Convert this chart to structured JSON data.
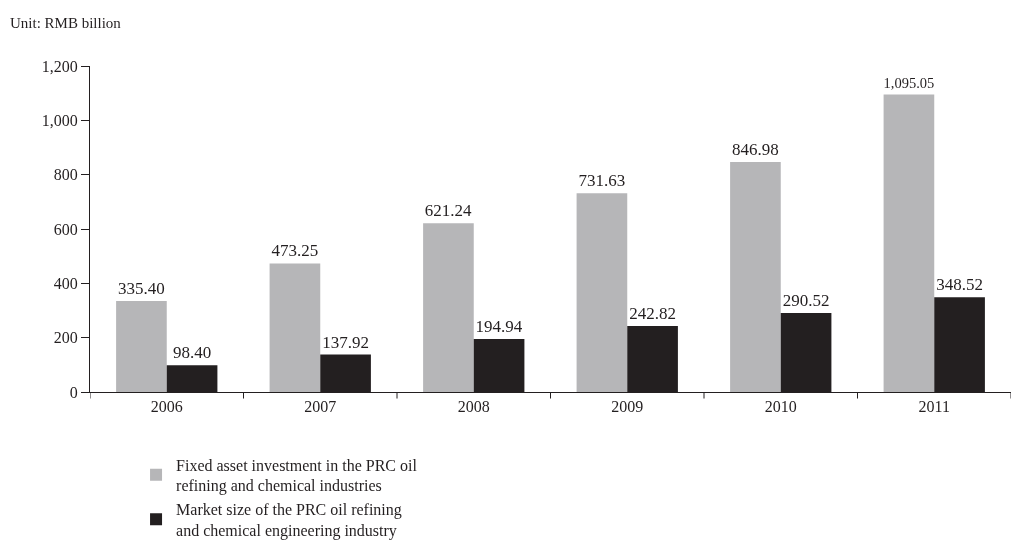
{
  "chart_data": {
    "type": "bar",
    "ylabel": "Unit: RMB billion",
    "categories": [
      "2006",
      "2007",
      "2008",
      "2009",
      "2010",
      "2011"
    ],
    "series": [
      {
        "name": "Fixed asset investment in the PRC oil refining and chemical industries",
        "color": "#b6b6b8",
        "values": [
          335.4,
          473.25,
          621.24,
          731.63,
          846.98,
          1095.05
        ],
        "value_labels": [
          "335.40",
          "473.25",
          "621.24",
          "731.63",
          "846.98",
          "1,095.05"
        ]
      },
      {
        "name": "Market size of the PRC oil refining and chemical engineering industry",
        "color": "#231f20",
        "values": [
          98.4,
          137.92,
          194.94,
          242.82,
          290.52,
          348.52
        ],
        "value_labels": [
          "98.40",
          "137.92",
          "194.94",
          "242.82",
          "290.52",
          "348.52"
        ]
      }
    ],
    "ylim": [
      0,
      1200
    ],
    "yticks": [
      0,
      200,
      400,
      600,
      800,
      {
        "value": 1000,
        "label": "1,000"
      },
      {
        "value": 1200,
        "label": "1,200"
      }
    ],
    "grid": false,
    "legend": "bottom"
  }
}
